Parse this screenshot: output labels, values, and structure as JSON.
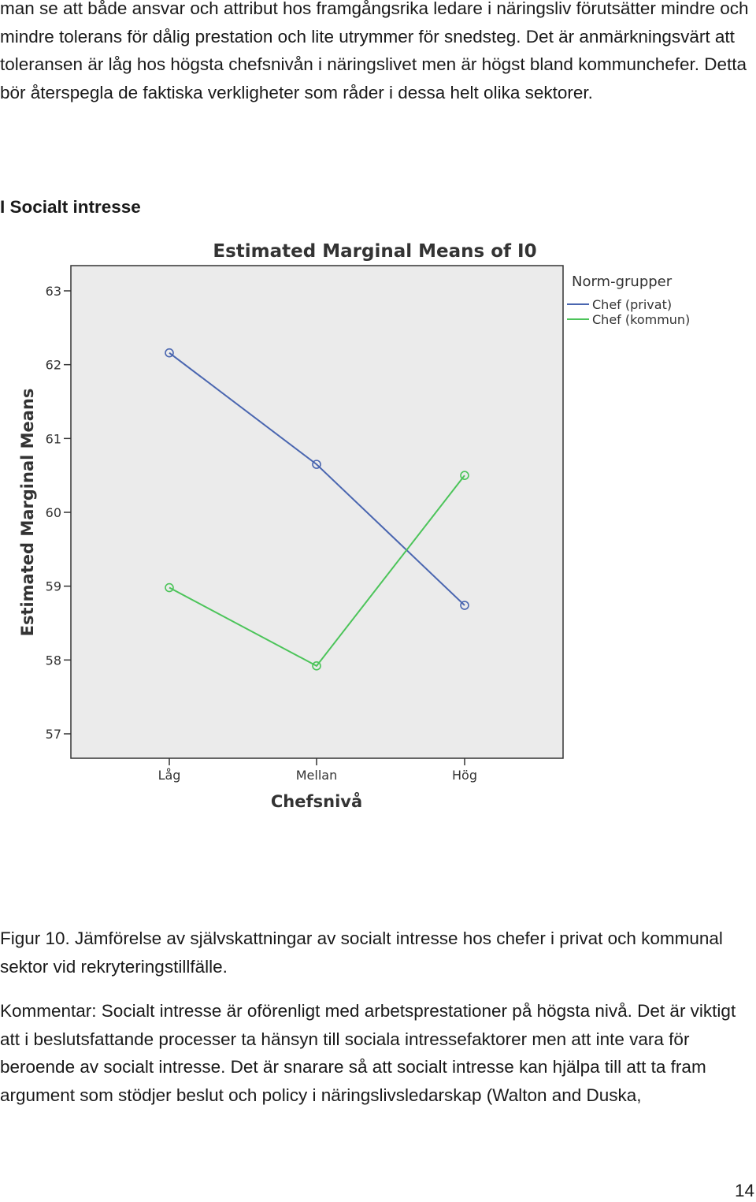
{
  "intro_text": "man se att både ansvar och attribut hos framgångsrika ledare i näringsliv förutsätter mindre och mindre tolerans för dålig prestation och lite utrymmer för snedsteg. Det är anmärkningsvärt att toleransen är låg hos högsta chefsnivån i näringslivet men är högst bland kommunchefer. Detta bör återspegla de faktiska verkligheter som råder i dessa helt olika sektorer.",
  "section_heading": "I Socialt intresse",
  "chart_data": {
    "type": "line",
    "title": "Estimated Marginal Means of I0",
    "xlabel": "Chefsnivå",
    "ylabel": "Estimated Marginal Means",
    "categories": [
      "Låg",
      "Mellan",
      "Hög"
    ],
    "ylim": [
      57,
      63
    ],
    "yticks": [
      "57",
      "58",
      "59",
      "60",
      "61",
      "62",
      "63"
    ],
    "legend_title": "Norm-grupper",
    "legend_position": "top-right-outside",
    "grid": false,
    "plot_background": "#ebebeb",
    "series": [
      {
        "name": "Chef (privat)",
        "color": "#4a66b0",
        "values": [
          62.16,
          60.65,
          58.74
        ]
      },
      {
        "name": "Chef (kommun)",
        "color": "#4cc45a",
        "values": [
          58.98,
          57.92,
          60.5
        ]
      }
    ]
  },
  "caption": "Figur 10. Jämförelse av självskattningar av socialt intresse hos chefer i privat och kommunal sektor vid rekryteringstillfälle.",
  "comment": "Kommentar: Socialt intresse är oförenligt med arbetsprestationer på högsta nivå. Det är viktigt att i beslutsfattande processer ta hänsyn till sociala intressefaktorer men att inte vara för beroende av socialt intresse. Det är snarare så att socialt intresse kan hjälpa till att ta fram argument som stödjer beslut och policy i näringslivsledarskap (Walton and Duska,",
  "page_number": "14"
}
